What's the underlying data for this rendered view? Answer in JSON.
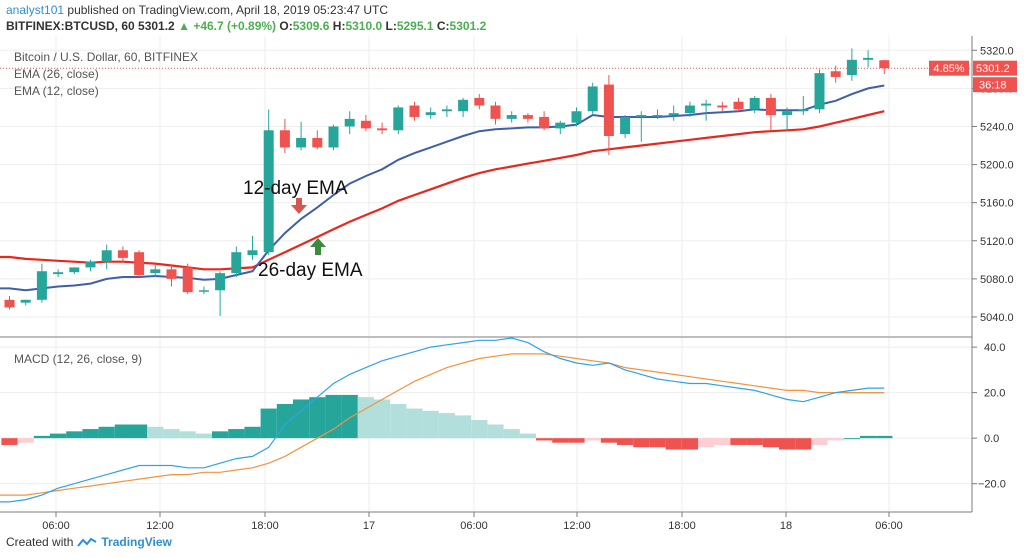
{
  "header": {
    "author": "analyst101",
    "published_text": "published on TradingView.com, April 18, 2019 05:23:47 UTC",
    "symbol": "BITFINEX:BTCUSD, 60",
    "last": "5301.2",
    "change": "+46.7 (+0.89%)",
    "o_label": "O:",
    "o_value": "5309.6",
    "h_label": "H:",
    "h_value": "5310.0",
    "l_label": "L:",
    "l_value": "5295.1",
    "c_label": "C:",
    "c_value": "5301.2"
  },
  "legend": {
    "title": "Bitcoin / U.S. Dollar, 60, BITFINEX",
    "ema26": "EMA (26, close)",
    "ema12": "EMA (12, close)",
    "macd": "MACD (12, 26, close, 9)"
  },
  "annotations": {
    "ema12": "12-day EMA",
    "ema26": "26-day EMA"
  },
  "price_tags": {
    "pct": "4.85%",
    "price": "5301.2",
    "timer": "36:18"
  },
  "footer": {
    "created_with": "Created with",
    "brand": "TradingView"
  },
  "colors": {
    "up": "#26a69a",
    "down": "#ef5350",
    "ema12": "#3f5fa8",
    "ema26": "#e8281f",
    "macd": "#2ea3e8",
    "signal": "#f29340",
    "hist_up_strong": "#26a69a",
    "hist_up_weak": "#b2dfdb",
    "hist_down_strong": "#ef5350",
    "hist_down_weak": "#ffcdd2"
  },
  "chart_data": [
    {
      "type": "candlestick",
      "name": "price",
      "title": "Bitcoin / U.S. Dollar, 60, BITFINEX",
      "y_ticks": [
        5040,
        5080,
        5120,
        5160,
        5200,
        5240,
        5280,
        5320
      ],
      "ylim": [
        5020,
        5335
      ],
      "x_ticks": [
        "06:00",
        "12:00",
        "18:00",
        "17",
        "06:00",
        "12:00",
        "18:00",
        "18",
        "06:00"
      ],
      "last_price": 5301.2,
      "candles": [
        {
          "o": 5058,
          "h": 5062,
          "l": 5048,
          "c": 5050
        },
        {
          "o": 5055,
          "h": 5058,
          "l": 5052,
          "c": 5058
        },
        {
          "o": 5058,
          "h": 5096,
          "l": 5055,
          "c": 5088
        },
        {
          "o": 5085,
          "h": 5090,
          "l": 5082,
          "c": 5087
        },
        {
          "o": 5087,
          "h": 5092,
          "l": 5085,
          "c": 5092
        },
        {
          "o": 5092,
          "h": 5100,
          "l": 5088,
          "c": 5098
        },
        {
          "o": 5098,
          "h": 5116,
          "l": 5090,
          "c": 5110
        },
        {
          "o": 5110,
          "h": 5114,
          "l": 5098,
          "c": 5102
        },
        {
          "o": 5108,
          "h": 5110,
          "l": 5082,
          "c": 5084
        },
        {
          "o": 5086,
          "h": 5096,
          "l": 5082,
          "c": 5090
        },
        {
          "o": 5090,
          "h": 5094,
          "l": 5072,
          "c": 5080
        },
        {
          "o": 5092,
          "h": 5096,
          "l": 5064,
          "c": 5066
        },
        {
          "o": 5068,
          "h": 5072,
          "l": 5064,
          "c": 5068
        },
        {
          "o": 5068,
          "h": 5088,
          "l": 5041,
          "c": 5086
        },
        {
          "o": 5086,
          "h": 5114,
          "l": 5082,
          "c": 5108
        },
        {
          "o": 5105,
          "h": 5125,
          "l": 5100,
          "c": 5110
        },
        {
          "o": 5108,
          "h": 5258,
          "l": 5105,
          "c": 5236
        },
        {
          "o": 5236,
          "h": 5248,
          "l": 5212,
          "c": 5218
        },
        {
          "o": 5218,
          "h": 5245,
          "l": 5215,
          "c": 5228
        },
        {
          "o": 5228,
          "h": 5236,
          "l": 5216,
          "c": 5218
        },
        {
          "o": 5218,
          "h": 5242,
          "l": 5215,
          "c": 5240
        },
        {
          "o": 5240,
          "h": 5256,
          "l": 5232,
          "c": 5248
        },
        {
          "o": 5246,
          "h": 5252,
          "l": 5235,
          "c": 5238
        },
        {
          "o": 5238,
          "h": 5244,
          "l": 5232,
          "c": 5236
        },
        {
          "o": 5236,
          "h": 5262,
          "l": 5232,
          "c": 5260
        },
        {
          "o": 5262,
          "h": 5266,
          "l": 5246,
          "c": 5250
        },
        {
          "o": 5252,
          "h": 5260,
          "l": 5248,
          "c": 5255
        },
        {
          "o": 5256,
          "h": 5262,
          "l": 5250,
          "c": 5258
        },
        {
          "o": 5256,
          "h": 5270,
          "l": 5250,
          "c": 5268
        },
        {
          "o": 5270,
          "h": 5274,
          "l": 5258,
          "c": 5262
        },
        {
          "o": 5262,
          "h": 5266,
          "l": 5242,
          "c": 5248
        },
        {
          "o": 5248,
          "h": 5256,
          "l": 5244,
          "c": 5252
        },
        {
          "o": 5252,
          "h": 5254,
          "l": 5244,
          "c": 5248
        },
        {
          "o": 5250,
          "h": 5256,
          "l": 5236,
          "c": 5238
        },
        {
          "o": 5238,
          "h": 5246,
          "l": 5232,
          "c": 5244
        },
        {
          "o": 5244,
          "h": 5260,
          "l": 5240,
          "c": 5256
        },
        {
          "o": 5256,
          "h": 5286,
          "l": 5252,
          "c": 5282
        },
        {
          "o": 5284,
          "h": 5294,
          "l": 5210,
          "c": 5230
        },
        {
          "o": 5232,
          "h": 5252,
          "l": 5228,
          "c": 5250
        },
        {
          "o": 5250,
          "h": 5256,
          "l": 5224,
          "c": 5252
        },
        {
          "o": 5252,
          "h": 5258,
          "l": 5248,
          "c": 5252
        },
        {
          "o": 5252,
          "h": 5262,
          "l": 5246,
          "c": 5254
        },
        {
          "o": 5254,
          "h": 5266,
          "l": 5250,
          "c": 5262
        },
        {
          "o": 5262,
          "h": 5268,
          "l": 5246,
          "c": 5264
        },
        {
          "o": 5262,
          "h": 5266,
          "l": 5256,
          "c": 5260
        },
        {
          "o": 5266,
          "h": 5270,
          "l": 5256,
          "c": 5258
        },
        {
          "o": 5258,
          "h": 5272,
          "l": 5254,
          "c": 5270
        },
        {
          "o": 5270,
          "h": 5274,
          "l": 5236,
          "c": 5252
        },
        {
          "o": 5252,
          "h": 5260,
          "l": 5236,
          "c": 5256
        },
        {
          "o": 5256,
          "h": 5272,
          "l": 5252,
          "c": 5258
        },
        {
          "o": 5258,
          "h": 5300,
          "l": 5254,
          "c": 5296
        },
        {
          "o": 5298,
          "h": 5304,
          "l": 5286,
          "c": 5292
        },
        {
          "o": 5294,
          "h": 5322,
          "l": 5288,
          "c": 5310
        },
        {
          "o": 5310,
          "h": 5320,
          "l": 5302,
          "c": 5312
        },
        {
          "o": 5309.6,
          "h": 5310,
          "l": 5295.1,
          "c": 5301.2
        }
      ],
      "ema12": [
        5070,
        5068,
        5070,
        5072,
        5073,
        5075,
        5080,
        5082,
        5082,
        5083,
        5082,
        5081,
        5079,
        5080,
        5084,
        5088,
        5110,
        5128,
        5143,
        5155,
        5168,
        5180,
        5188,
        5195,
        5205,
        5212,
        5218,
        5224,
        5230,
        5235,
        5237,
        5238,
        5239,
        5239,
        5240,
        5242,
        5252,
        5250,
        5250,
        5250,
        5250,
        5251,
        5252,
        5254,
        5255,
        5256,
        5258,
        5257,
        5257,
        5257,
        5263,
        5267,
        5274,
        5280,
        5283
      ],
      "ema26": [
        5103,
        5101,
        5100,
        5099,
        5098,
        5097,
        5098,
        5098,
        5097,
        5096,
        5094,
        5092,
        5090,
        5090,
        5091,
        5092,
        5100,
        5108,
        5116,
        5124,
        5132,
        5140,
        5147,
        5154,
        5162,
        5168,
        5174,
        5180,
        5186,
        5191,
        5195,
        5198,
        5201,
        5204,
        5207,
        5210,
        5214,
        5216,
        5218,
        5220,
        5222,
        5224,
        5226,
        5228,
        5230,
        5232,
        5234,
        5235,
        5236,
        5237,
        5240,
        5244,
        5248,
        5252,
        5256
      ]
    },
    {
      "type": "macd",
      "name": "MACD (12, 26, close, 9)",
      "y_ticks": [
        -20.0,
        0.0,
        20.0,
        40.0
      ],
      "ylim": [
        -32,
        44
      ],
      "macd": [
        -28,
        -27,
        -25,
        -22,
        -20,
        -18,
        -16,
        -14,
        -12,
        -12,
        -12,
        -13,
        -13,
        -11,
        -9,
        -8,
        -4,
        6,
        12,
        18,
        24,
        28,
        31,
        34,
        36,
        38,
        40,
        41,
        42,
        43,
        43,
        44,
        42,
        38,
        35,
        33,
        32,
        33,
        30,
        28,
        26,
        25,
        24,
        24,
        23,
        22,
        21,
        19,
        17,
        16,
        18,
        20,
        21,
        22,
        22
      ],
      "signal": [
        -25,
        -25,
        -24,
        -23,
        -22,
        -21,
        -20,
        -19,
        -18,
        -17,
        -16,
        -16,
        -15,
        -15,
        -14,
        -13,
        -11,
        -8,
        -4,
        0,
        4,
        9,
        13,
        17,
        21,
        25,
        28,
        31,
        33,
        35,
        36,
        37,
        37,
        37,
        36,
        35,
        34,
        33,
        31,
        30,
        29,
        28,
        27,
        26,
        25,
        24,
        23,
        22,
        21,
        21,
        20,
        20,
        20,
        20,
        20
      ],
      "hist": [
        -3,
        -2,
        1,
        2,
        3,
        4,
        5,
        6,
        6,
        5,
        4,
        3,
        2,
        3,
        4,
        5,
        13,
        15,
        17,
        18,
        19,
        19,
        18,
        17,
        15,
        13,
        12,
        11,
        10,
        8,
        6,
        4,
        2,
        -1,
        -2,
        -2,
        -1,
        -2,
        -3,
        -4,
        -4,
        -5,
        -5,
        -4,
        -3,
        -3,
        -3,
        -4,
        -5,
        -5,
        -3,
        -1,
        0,
        1,
        1
      ]
    }
  ]
}
